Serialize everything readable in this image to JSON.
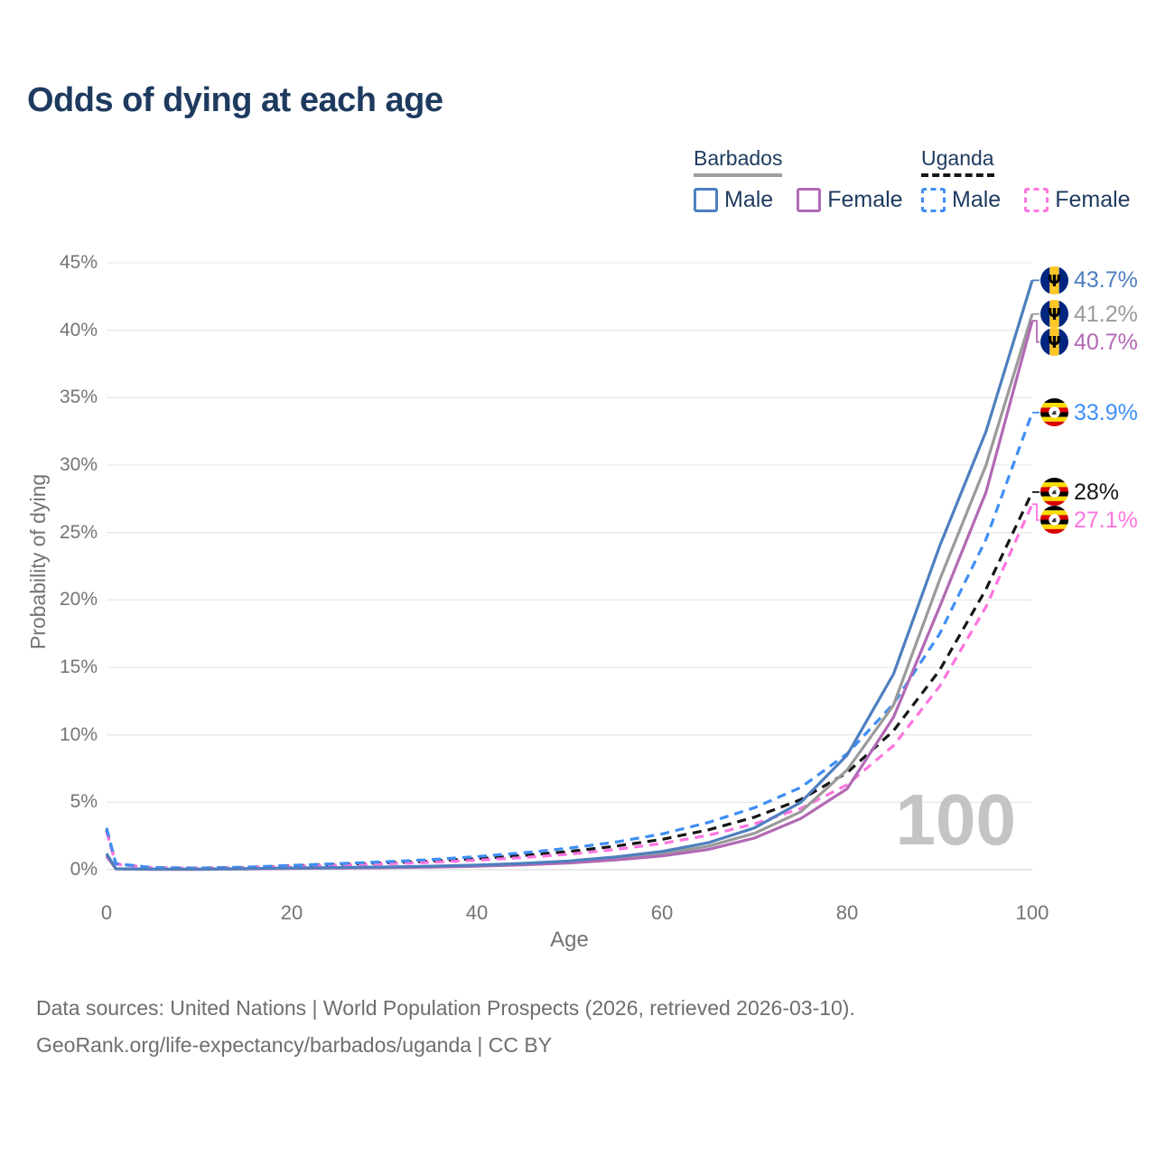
{
  "title": "Odds of dying at each age",
  "legend": {
    "groups": [
      {
        "label": "Barbados",
        "line_style": "solid",
        "underline_color": "#9e9e9e",
        "items": [
          {
            "label": "Male",
            "color": "#4d7fbe"
          },
          {
            "label": "Female",
            "color": "#b269b4"
          }
        ]
      },
      {
        "label": "Uganda",
        "line_style": "dashed",
        "underline_color": "#161616",
        "items": [
          {
            "label": "Male",
            "color": "#3f8ef5"
          },
          {
            "label": "Female",
            "color": "#ff74e0"
          }
        ]
      }
    ]
  },
  "watermark": "100",
  "footer": {
    "line1": "Data sources: United Nations | World Population Prospects (2026, retrieved 2026-03-10).",
    "line2": "GeoRank.org/life-expectancy/barbados/uganda | CC BY"
  },
  "chart_data": {
    "type": "line",
    "title": "Odds of dying at each age",
    "xlabel": "Age",
    "ylabel": "Probability of dying",
    "xlim": [
      0,
      100
    ],
    "ylim": [
      0,
      45
    ],
    "x_ticks": [
      0,
      20,
      40,
      60,
      80,
      100
    ],
    "y_ticks": [
      0,
      5,
      10,
      15,
      20,
      25,
      30,
      35,
      40,
      45
    ],
    "grid": "horizontal",
    "legend_position": "top-right",
    "ages": [
      0,
      1,
      5,
      10,
      15,
      20,
      25,
      30,
      35,
      40,
      45,
      50,
      55,
      60,
      65,
      70,
      75,
      80,
      85,
      90,
      95,
      100
    ],
    "series": [
      {
        "name": "Barbados Male",
        "country": "Barbados",
        "sex": "Male",
        "color": "#4d7fbe",
        "dash": "solid",
        "flag": "barbados",
        "end_label": "43.7%",
        "values": [
          1.2,
          0.08,
          0.04,
          0.04,
          0.08,
          0.13,
          0.16,
          0.2,
          0.26,
          0.34,
          0.47,
          0.65,
          0.95,
          1.35,
          2.0,
          3.1,
          5.0,
          8.5,
          14.5,
          24.0,
          32.5,
          43.7
        ]
      },
      {
        "name": "Barbados Both sexes",
        "country": "Barbados",
        "sex": "Both sexes",
        "color": "#9a9a9a",
        "dash": "solid",
        "flag": "barbados",
        "end_label": "41.2%",
        "values": [
          1.1,
          0.07,
          0.035,
          0.035,
          0.07,
          0.11,
          0.14,
          0.17,
          0.22,
          0.3,
          0.41,
          0.57,
          0.83,
          1.18,
          1.75,
          2.7,
          4.3,
          7.4,
          12.2,
          21.5,
          30.0,
          41.2
        ]
      },
      {
        "name": "Barbados Female",
        "country": "Barbados",
        "sex": "Female",
        "color": "#b269b4",
        "dash": "solid",
        "flag": "barbados",
        "end_label": "40.7%",
        "values": [
          1.0,
          0.06,
          0.03,
          0.03,
          0.06,
          0.09,
          0.12,
          0.15,
          0.19,
          0.26,
          0.36,
          0.5,
          0.72,
          1.02,
          1.5,
          2.35,
          3.8,
          6.0,
          11.3,
          19.5,
          28.0,
          40.7
        ]
      },
      {
        "name": "Uganda Male",
        "country": "Uganda",
        "sex": "Male",
        "color": "#3f8ef5",
        "dash": "dashed",
        "flag": "uganda",
        "end_label": "33.9%",
        "values": [
          3.1,
          0.45,
          0.16,
          0.13,
          0.19,
          0.32,
          0.45,
          0.58,
          0.75,
          0.97,
          1.25,
          1.6,
          2.05,
          2.65,
          3.5,
          4.6,
          6.1,
          8.6,
          12.3,
          17.5,
          24.5,
          33.9
        ]
      },
      {
        "name": "Uganda Both sexes",
        "country": "Uganda",
        "sex": "Both sexes",
        "color": "#161616",
        "dash": "dashed",
        "flag": "uganda",
        "end_label": "28%",
        "values": [
          2.95,
          0.43,
          0.15,
          0.12,
          0.17,
          0.28,
          0.39,
          0.5,
          0.64,
          0.82,
          1.05,
          1.35,
          1.75,
          2.25,
          2.95,
          3.9,
          5.2,
          7.2,
          10.3,
          14.8,
          20.8,
          28.0
        ]
      },
      {
        "name": "Uganda Female",
        "country": "Uganda",
        "sex": "Female",
        "color": "#ff74e0",
        "dash": "dashed",
        "flag": "uganda",
        "end_label": "27.1%",
        "values": [
          2.8,
          0.41,
          0.14,
          0.11,
          0.15,
          0.24,
          0.33,
          0.43,
          0.55,
          0.7,
          0.9,
          1.15,
          1.5,
          1.95,
          2.55,
          3.4,
          4.55,
          6.3,
          9.2,
          13.6,
          19.5,
          27.1
        ]
      }
    ]
  }
}
